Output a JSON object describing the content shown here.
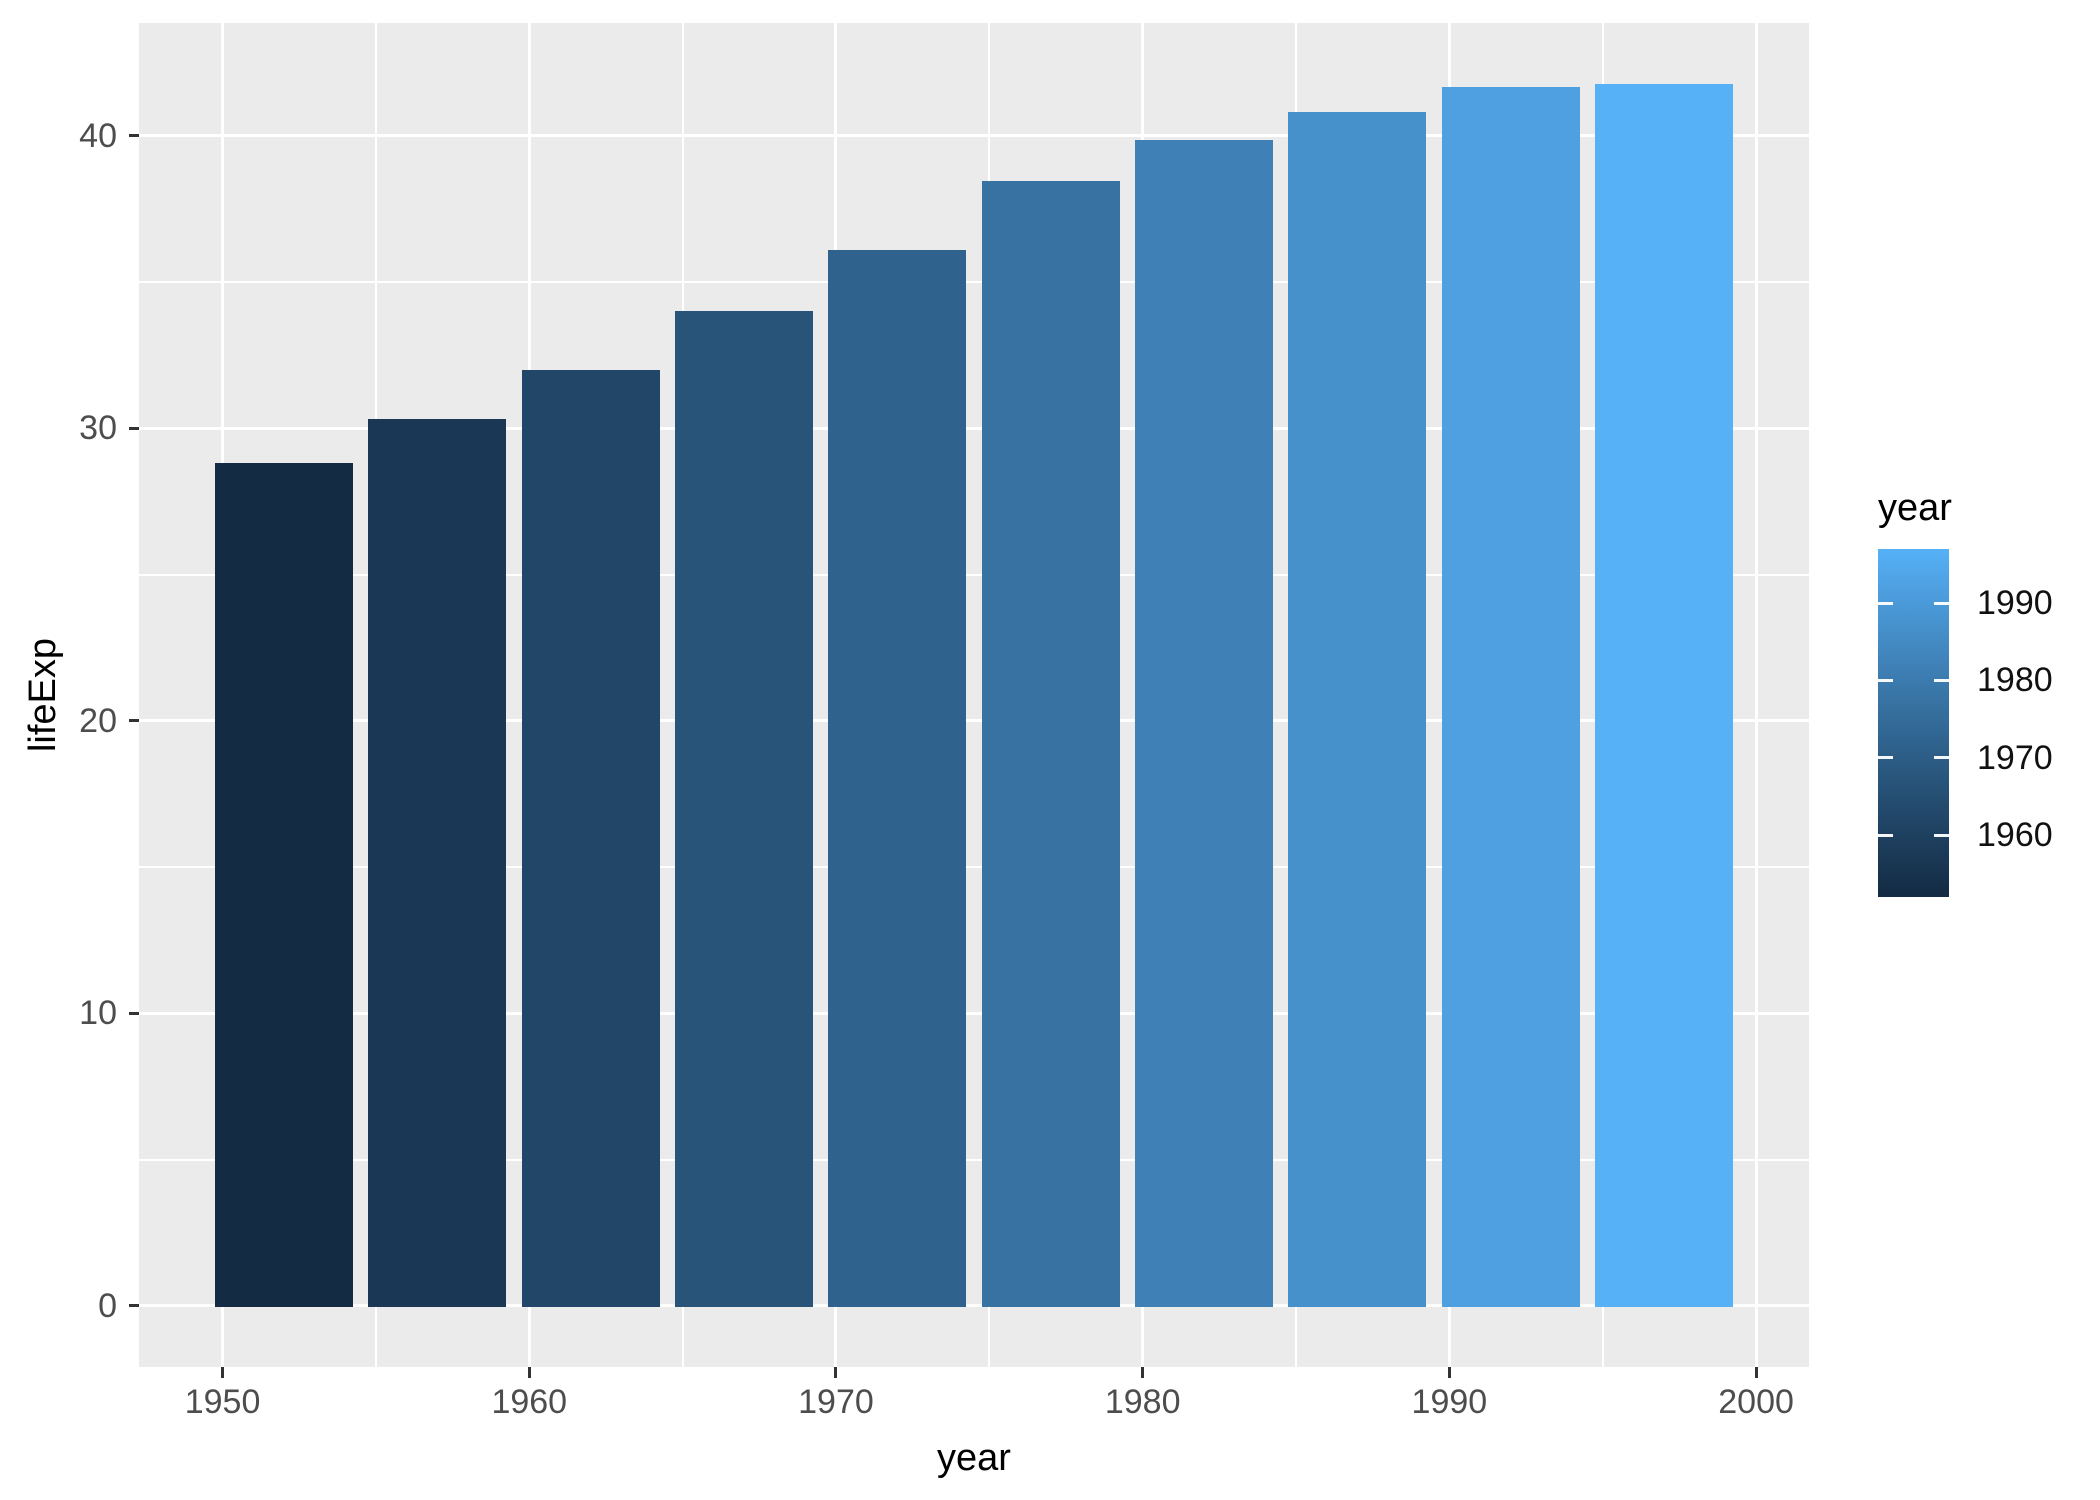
{
  "chart_data": {
    "type": "bar",
    "title": "",
    "xlabel": "year",
    "ylabel": "lifeExp",
    "x": [
      1952,
      1957,
      1962,
      1967,
      1972,
      1977,
      1982,
      1987,
      1992,
      1997
    ],
    "values": [
      28.801,
      30.332,
      31.997,
      34.02,
      36.088,
      38.438,
      39.854,
      40.822,
      41.674,
      41.763
    ],
    "bar_width_years": 4.5,
    "bar_colors": [
      "#132B43",
      "#1A3855",
      "#214667",
      "#28547A",
      "#2F638E",
      "#3772A2",
      "#3F81B7",
      "#4691CC",
      "#4EA0E1",
      "#56B1F7"
    ],
    "x_ticks": [
      1950,
      1960,
      1970,
      1980,
      1990,
      2000
    ],
    "y_ticks": [
      0,
      10,
      20,
      30,
      40
    ],
    "x_minor_ticks": [
      1955,
      1965,
      1975,
      1985,
      1995
    ],
    "y_minor_ticks": [
      5,
      15,
      25,
      35
    ],
    "xlim": [
      1947.275,
      2001.725
    ],
    "ylim": [
      -2.088,
      43.851
    ],
    "grid": "on",
    "panel_bg": "#EBEBEB",
    "grid_color": "#FFFFFF",
    "tick_mark_color": "#333333",
    "tick_label_color": "#4D4D4D",
    "legend": {
      "position": "right",
      "title": "year",
      "gradient_high": "#56B1F7",
      "gradient_low": "#132B43",
      "range": [
        1952,
        1997
      ],
      "ticks": [
        1990,
        1980,
        1970,
        1960
      ]
    }
  }
}
